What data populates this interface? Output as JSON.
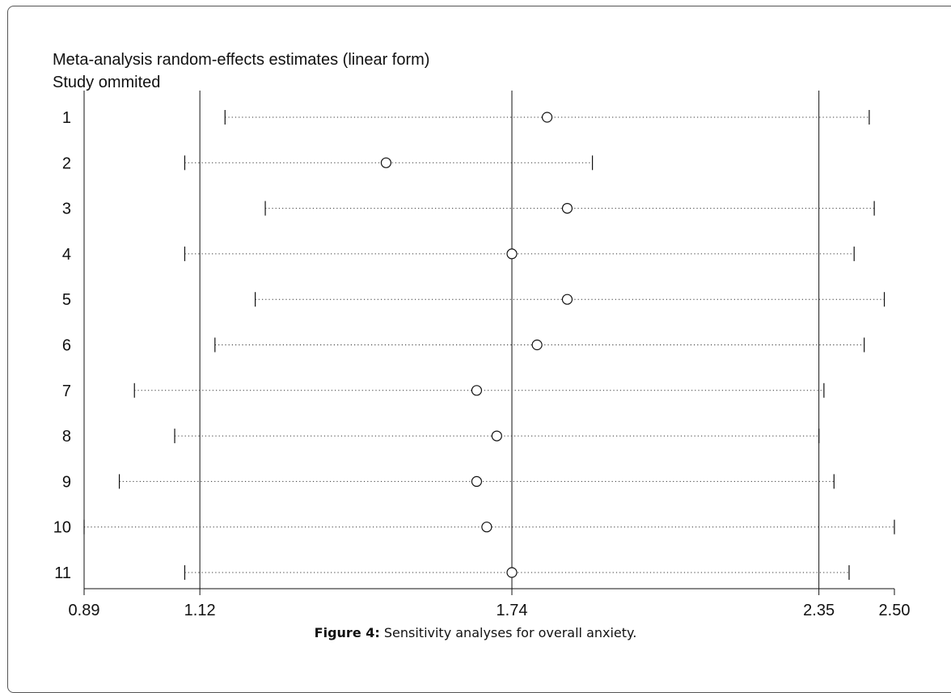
{
  "chart_data": {
    "type": "forest",
    "title": "Meta-analysis random-effects estimates (linear form)",
    "subtitle": "Study ommited",
    "xlim": [
      0.89,
      2.5
    ],
    "x_ticks": [
      "0.89",
      "1.12",
      "1.74",
      "2.35",
      "2.50"
    ],
    "reference_lines": [
      1.12,
      1.74,
      2.35
    ],
    "studies": [
      {
        "label": "1",
        "estimate": 1.81,
        "lower": 1.17,
        "upper": 2.45
      },
      {
        "label": "2",
        "estimate": 1.49,
        "lower": 1.09,
        "upper": 1.9
      },
      {
        "label": "3",
        "estimate": 1.85,
        "lower": 1.25,
        "upper": 2.46
      },
      {
        "label": "4",
        "estimate": 1.74,
        "lower": 1.09,
        "upper": 2.42
      },
      {
        "label": "5",
        "estimate": 1.85,
        "lower": 1.23,
        "upper": 2.48
      },
      {
        "label": "6",
        "estimate": 1.79,
        "lower": 1.15,
        "upper": 2.44
      },
      {
        "label": "7",
        "estimate": 1.67,
        "lower": 0.99,
        "upper": 2.36
      },
      {
        "label": "8",
        "estimate": 1.71,
        "lower": 1.07,
        "upper": 2.35
      },
      {
        "label": "9",
        "estimate": 1.67,
        "lower": 0.96,
        "upper": 2.38
      },
      {
        "label": "10",
        "estimate": 1.69,
        "lower": 0.89,
        "upper": 2.5
      },
      {
        "label": "11",
        "estimate": 1.74,
        "lower": 1.09,
        "upper": 2.41
      }
    ]
  },
  "caption": {
    "label": "Figure 4:",
    "text": " Sensitivity analyses for overall anxiety."
  },
  "colors": {
    "line": "#111111",
    "ci_line": "#333333"
  }
}
